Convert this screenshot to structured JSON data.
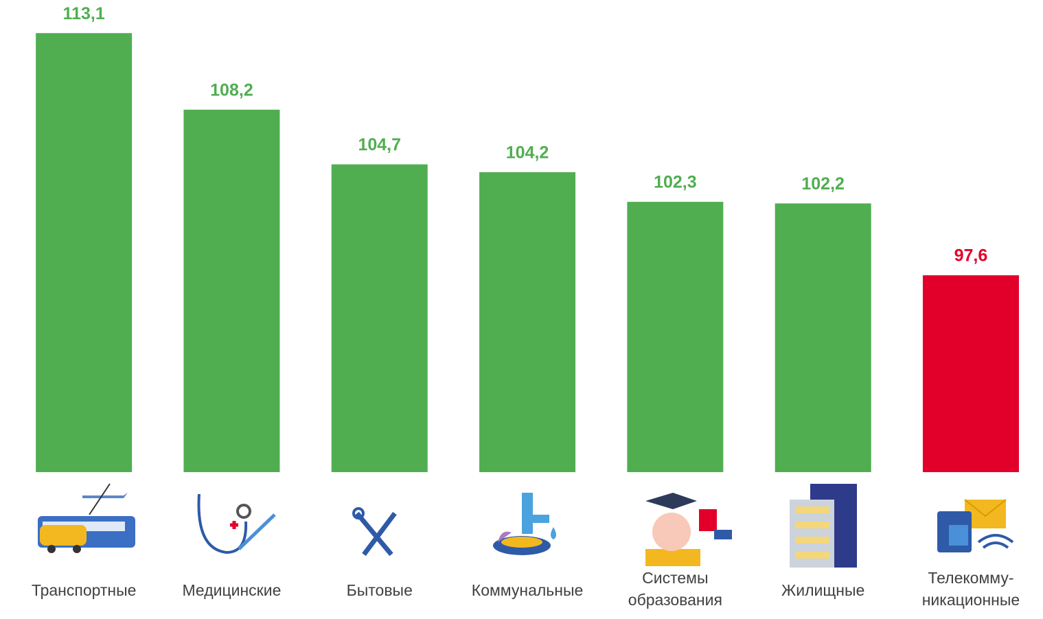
{
  "chart_data": {
    "type": "bar",
    "categories": [
      [
        "Транспортные"
      ],
      [
        "Медицинские"
      ],
      [
        "Бытовые"
      ],
      [
        "Коммунальные"
      ],
      [
        "Системы",
        "образования"
      ],
      [
        "Жилищные"
      ],
      [
        "Телекомму-",
        "никационные"
      ]
    ],
    "values": [
      113.1,
      108.2,
      104.7,
      104.2,
      102.3,
      102.2,
      97.6
    ],
    "value_labels": [
      "113,1",
      "108,2",
      "104,7",
      "104,2",
      "102,3",
      "102,2",
      "97,6"
    ],
    "colors": [
      "#50ae50",
      "#50ae50",
      "#50ae50",
      "#50ae50",
      "#50ae50",
      "#50ae50",
      "#e2002b"
    ],
    "ylim": [
      85,
      115
    ]
  }
}
